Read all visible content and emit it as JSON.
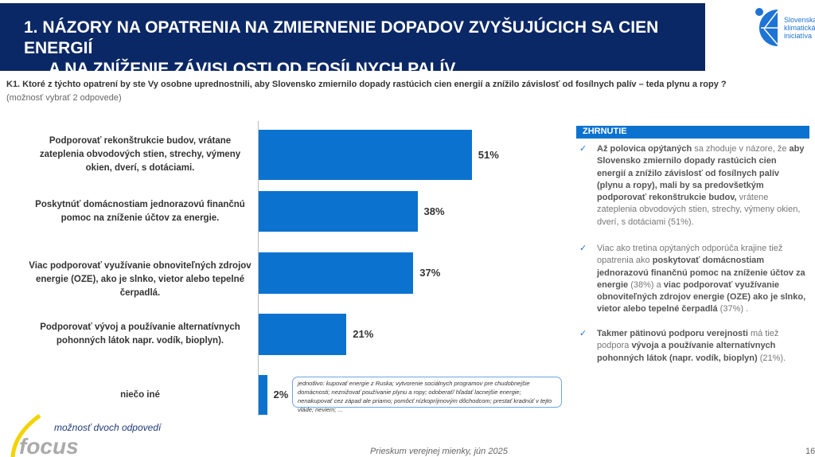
{
  "header": {
    "title_line1": "1.  NÁZORY NA OPATRENIA NA ZMIERNENIE DOPADOV ZVYŠUJÚCICH SA CIEN ENERGIÍ",
    "title_line2": "A NA ZNÍŽENIE ZÁVISLOSTI OD FOSÍLNYCH PALÍV",
    "logo_text": [
      "Slovenská",
      "klimatická",
      "iniciatíva"
    ]
  },
  "question": "K1.  Ktoré z týchto opatrení by ste Vy osobne uprednostnili, aby Slovensko zmiernilo dopady rastúcich cien energií a znížilo závislosť od fosílnych palív – teda plynu a ropy ?",
  "question_note": "(možnosť vybrať 2 odpovede)",
  "chart_data": {
    "type": "bar",
    "orientation": "horizontal",
    "categories": [
      "Podporovať rekonštrukcie budov, vrátane zateplenia obvodových stien, strechy, výmeny okien, dverí, s dotáciami.",
      "Poskytnúť domácnostiam jednorazovú finančnú pomoc na zníženie účtov za energie.",
      "Viac podporovať využívanie obnoviteľných zdrojov energie (OZE), ako je slnko, vietor alebo tepelné čerpadlá.",
      "Podporovať vývoj a používanie alternatívnych pohonných látok napr. vodík, bioplyn).",
      "niečo iné"
    ],
    "values": [
      51,
      38,
      37,
      21,
      2
    ],
    "value_labels": [
      "51%",
      "38%",
      "37%",
      "21%",
      "2%"
    ],
    "unit": "%",
    "xlim": [
      0,
      100
    ],
    "color": "#0b73cf"
  },
  "other_note": "jednotlivo: kupovať energie z Ruska; vytvorenie sociálnych programov pre chudobnejšie domácnosti; neznižovať používanie plynu a ropy; odoberať/ hľadať lacnejšie energie; nenakupovať cez západ ale priamo; pomôcť nízkopríjmovým dôchodcom; prestať kradnúť v tejto vláde; neviem; ...",
  "summary": {
    "heading": "ZHRNUTIE",
    "items": [
      [
        [
          "b",
          "Až polovica opýtaných"
        ],
        [
          "n",
          " sa zhoduje v názore, že "
        ],
        [
          "b",
          "aby Slovensko zmiernilo dopady rastúcich cien energií a znížilo závislosť od fosílnych palív (plynu a ropy), mali by sa predovšetkým podporovať rekonštrukcie budov,"
        ],
        [
          "n",
          " vrátene zateplenia obvodových stien, strechy, výmeny okien, dverí, s dotáciami (51%)."
        ]
      ],
      [
        [
          "n",
          "Viac ako tretina opýtaných odporúča krajine tiež opatrenia ako "
        ],
        [
          "b",
          "poskytovať domácnostiam jednorazovú finančnú pomoc na zníženie účtov za energie"
        ],
        [
          "n",
          " (38%) a "
        ],
        [
          "b",
          "viac podporovať využívanie obnoviteľných zdrojov energie (OZE) ako je slnko, vietor alebo tepelné čerpadlá"
        ],
        [
          "n",
          " (37%) ."
        ]
      ],
      [
        [
          "b",
          "Takmer pätinovú podporu verejnosti"
        ],
        [
          "n",
          " má tiež podpora "
        ],
        [
          "b",
          "vývoja a používanie alternatívnych pohonných látok (napr. vodík, bioplyn)"
        ],
        [
          "n",
          " (21%)."
        ]
      ]
    ]
  },
  "footer": {
    "note": "možnosť dvoch odpovedí",
    "logo": "focus",
    "source": "Prieskum verejnej mienky, jún 2025",
    "page": "16"
  }
}
